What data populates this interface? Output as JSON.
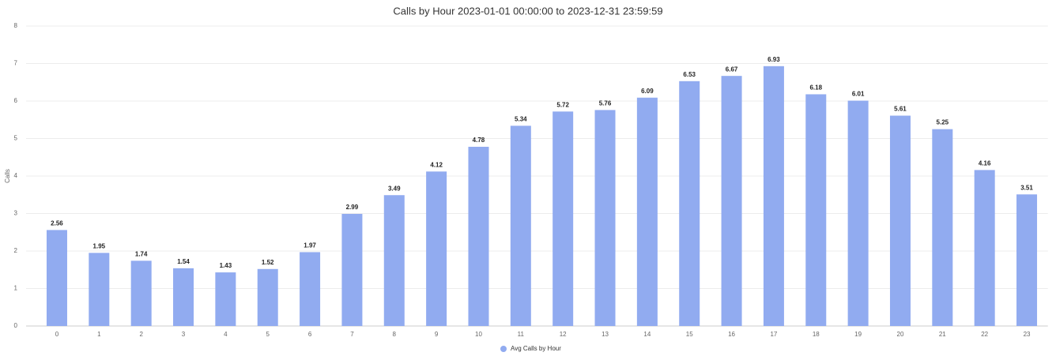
{
  "chart_data": {
    "type": "bar",
    "title": "Calls by Hour 2023-01-01 00:00:00 to 2023-12-31 23:59:59",
    "y_label": "Calls",
    "categories": [
      "0",
      "1",
      "2",
      "3",
      "4",
      "5",
      "6",
      "7",
      "8",
      "9",
      "10",
      "11",
      "12",
      "13",
      "14",
      "15",
      "16",
      "17",
      "18",
      "19",
      "20",
      "21",
      "22",
      "23"
    ],
    "series": [
      {
        "name": "Avg Calls by Hour",
        "color": "#91abf0",
        "values": [
          2.56,
          1.95,
          1.74,
          1.54,
          1.43,
          1.52,
          1.97,
          2.99,
          3.49,
          4.12,
          4.78,
          5.34,
          5.72,
          5.76,
          6.09,
          6.53,
          6.67,
          6.93,
          6.18,
          6.01,
          5.61,
          5.25,
          4.16,
          3.51
        ]
      }
    ],
    "ylim": [
      0,
      8
    ],
    "yticks": [
      0,
      1,
      2,
      3,
      4,
      5,
      6,
      7,
      8
    ],
    "grid": true,
    "legend": "bottom"
  }
}
